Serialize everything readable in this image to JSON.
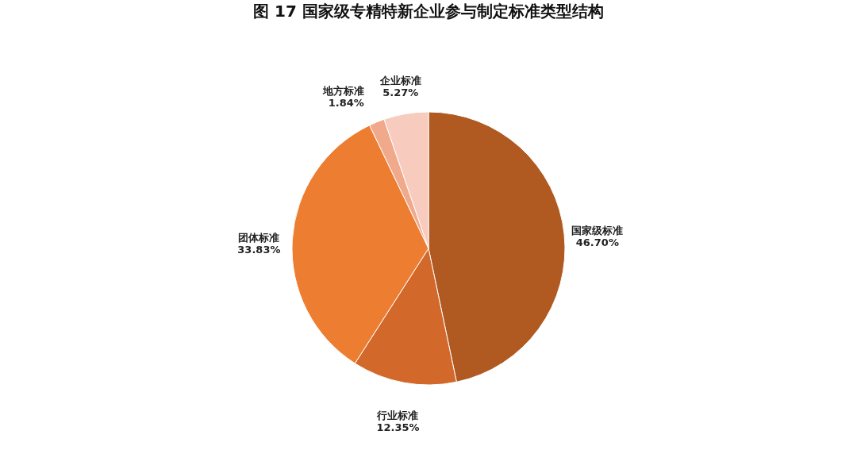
{
  "chart_data": {
    "type": "pie",
    "title": "图 17  国家级专精特新企业参与制定标准类型结构",
    "categories": [
      "国家级标准",
      "行业标准",
      "团体标准",
      "地方标准",
      "企业标准"
    ],
    "values": [
      46.7,
      12.35,
      33.83,
      1.84,
      5.27
    ],
    "value_labels": [
      "46.70%",
      "12.35%",
      "33.83%",
      "1.84%",
      "5.27%"
    ],
    "colors": [
      "#b05a22",
      "#d2692b",
      "#ed7d31",
      "#f1a98b",
      "#f7cbbd"
    ]
  }
}
